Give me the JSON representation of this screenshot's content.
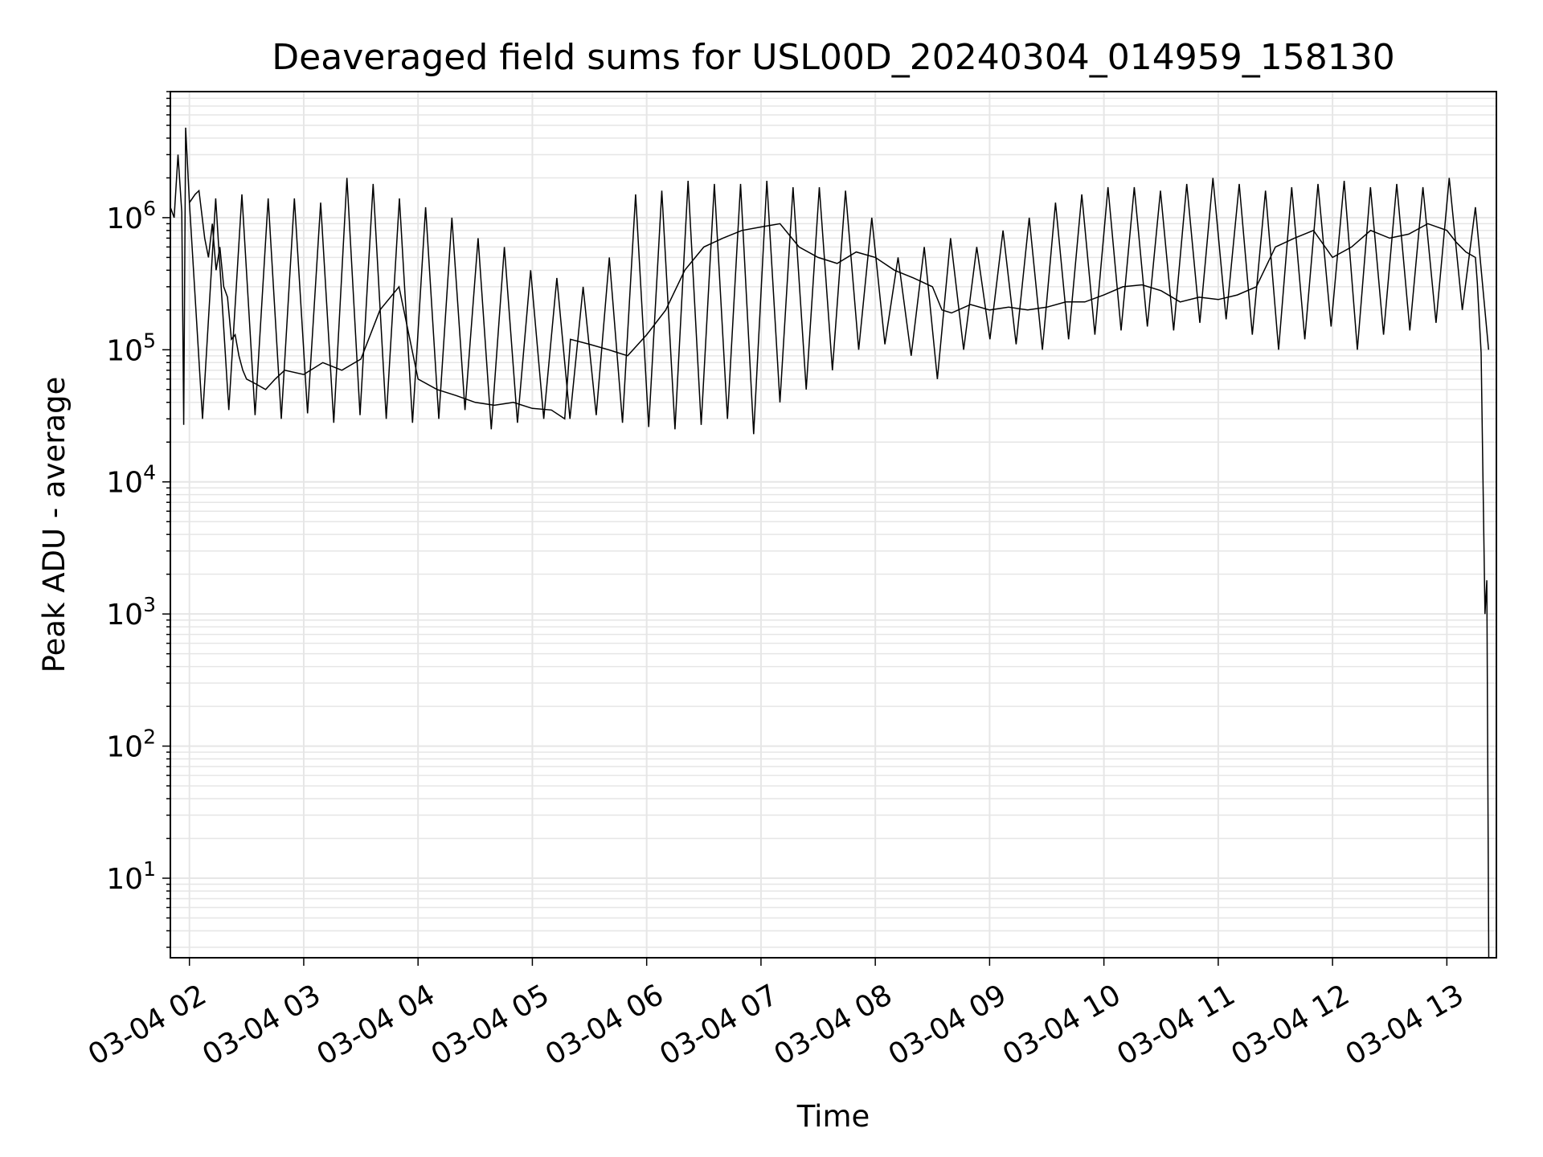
{
  "chart_data": {
    "type": "line",
    "title": "Deaveraged field sums for USL00D_20240304_014959_158130",
    "xlabel": "Time",
    "ylabel": "Peak ADU - average",
    "yscale": "log",
    "xlim": [
      "2024-03-04 01:50",
      "2024-03-04 13:26"
    ],
    "ylim": [
      2.5,
      9000000
    ],
    "grid": "major and minor",
    "line_color": "#000000",
    "grid_color": "#e6e6e6",
    "x_tick_labels": [
      "03-04 02",
      "03-04 03",
      "03-04 04",
      "03-04 05",
      "03-04 06",
      "03-04 07",
      "03-04 08",
      "03-04 09",
      "03-04 10",
      "03-04 11",
      "03-04 12",
      "03-04 13"
    ],
    "y_tick_labels": [
      {
        "base": "10",
        "exp": "1"
      },
      {
        "base": "10",
        "exp": "2"
      },
      {
        "base": "10",
        "exp": "3"
      },
      {
        "base": "10",
        "exp": "4"
      },
      {
        "base": "10",
        "exp": "5"
      },
      {
        "base": "10",
        "exp": "6"
      }
    ],
    "series": [
      {
        "x": [
          "2024-03-04 01:50",
          "2024-03-04 01:52",
          "2024-03-04 01:54",
          "2024-03-04 01:56",
          "2024-03-04 01:57",
          "2024-03-04 01:58",
          "2024-03-04 02:00",
          "2024-03-04 02:03",
          "2024-03-04 02:05",
          "2024-03-04 02:08",
          "2024-03-04 02:10",
          "2024-03-04 02:12",
          "2024-03-04 02:14",
          "2024-03-04 02:16",
          "2024-03-04 02:18",
          "2024-03-04 02:20",
          "2024-03-04 02:22",
          "2024-03-04 02:24",
          "2024-03-04 02:26",
          "2024-03-04 02:28",
          "2024-03-04 02:30",
          "2024-03-04 02:35",
          "2024-03-04 02:40",
          "2024-03-04 02:45",
          "2024-03-04 02:50",
          "2024-03-04 03:00",
          "2024-03-04 03:10",
          "2024-03-04 03:20",
          "2024-03-04 03:30",
          "2024-03-04 03:40",
          "2024-03-04 03:50",
          "2024-03-04 04:00",
          "2024-03-04 04:10",
          "2024-03-04 04:20",
          "2024-03-04 04:30",
          "2024-03-04 04:40",
          "2024-03-04 04:50",
          "2024-03-04 05:00",
          "2024-03-04 05:10",
          "2024-03-04 05:17",
          "2024-03-04 05:20",
          "2024-03-04 05:30",
          "2024-03-04 05:40",
          "2024-03-04 05:50",
          "2024-03-04 06:00",
          "2024-03-04 06:10",
          "2024-03-04 06:20",
          "2024-03-04 06:30",
          "2024-03-04 06:40",
          "2024-03-04 06:50",
          "2024-03-04 07:00",
          "2024-03-04 07:10",
          "2024-03-04 07:20",
          "2024-03-04 07:30",
          "2024-03-04 07:40",
          "2024-03-04 07:50",
          "2024-03-04 08:00",
          "2024-03-04 08:10",
          "2024-03-04 08:20",
          "2024-03-04 08:30",
          "2024-03-04 08:35",
          "2024-03-04 08:40",
          "2024-03-04 08:50",
          "2024-03-04 09:00",
          "2024-03-04 09:10",
          "2024-03-04 09:20",
          "2024-03-04 09:30",
          "2024-03-04 09:40",
          "2024-03-04 09:50",
          "2024-03-04 10:00",
          "2024-03-04 10:10",
          "2024-03-04 10:20",
          "2024-03-04 10:30",
          "2024-03-04 10:40",
          "2024-03-04 10:50",
          "2024-03-04 11:00",
          "2024-03-04 11:10",
          "2024-03-04 11:20",
          "2024-03-04 11:30",
          "2024-03-04 11:40",
          "2024-03-04 11:50",
          "2024-03-04 12:00",
          "2024-03-04 12:10",
          "2024-03-04 12:20",
          "2024-03-04 12:30",
          "2024-03-04 12:40",
          "2024-03-04 12:50",
          "2024-03-04 13:00",
          "2024-03-04 13:05",
          "2024-03-04 13:10",
          "2024-03-04 13:15",
          "2024-03-04 13:16",
          "2024-03-04 13:18",
          "2024-03-04 13:20",
          "2024-03-04 13:21",
          "2024-03-04 13:22"
        ],
        "y": [
          1200000,
          1000000,
          3000000,
          1100000,
          27000,
          4800000,
          1300000,
          1500000,
          1600000,
          700000,
          500000,
          900000,
          400000,
          600000,
          300000,
          250000,
          120000,
          130000,
          90000,
          70000,
          60000,
          55000,
          50000,
          60000,
          70000,
          65000,
          80000,
          70000,
          85000,
          200000,
          300000,
          60000,
          50000,
          45000,
          40000,
          38000,
          40000,
          36000,
          35000,
          30000,
          120000,
          110000,
          100000,
          90000,
          130000,
          200000,
          400000,
          600000,
          700000,
          800000,
          850000,
          900000,
          600000,
          500000,
          450000,
          550000,
          500000,
          400000,
          350000,
          300000,
          200000,
          190000,
          220000,
          200000,
          210000,
          200000,
          210000,
          230000,
          230000,
          260000,
          300000,
          310000,
          280000,
          230000,
          250000,
          240000,
          260000,
          300000,
          600000,
          700000,
          800000,
          500000,
          600000,
          800000,
          700000,
          750000,
          900000,
          800000,
          650000,
          550000,
          500000,
          320000,
          95000,
          1000,
          1800,
          2.5
        ],
        "spikes_high": [
          1300000,
          1400000,
          1500000,
          1400000,
          1400000,
          1300000,
          2000000,
          1800000,
          1400000,
          1200000,
          1000000,
          700000,
          600000,
          400000,
          350000,
          300000,
          500000,
          1500000,
          1600000,
          1900000,
          1800000,
          1800000,
          1900000,
          1700000,
          1700000,
          1600000,
          1000000,
          500000,
          600000,
          700000,
          600000,
          800000,
          1000000,
          1300000,
          1500000,
          1700000,
          1700000,
          1600000,
          1800000,
          2000000,
          1800000,
          1600000,
          1700000,
          1800000,
          1900000,
          1700000,
          1800000,
          1700000,
          2000000,
          1200000
        ],
        "spikes_low": [
          30000,
          35000,
          32000,
          30000,
          33000,
          28000,
          32000,
          30000,
          28000,
          30000,
          35000,
          25000,
          28000,
          30000,
          30000,
          32000,
          28000,
          26000,
          25000,
          27000,
          30000,
          23000,
          40000,
          50000,
          70000,
          100000,
          110000,
          90000,
          60000,
          100000,
          120000,
          110000,
          100000,
          120000,
          130000,
          140000,
          150000,
          140000,
          160000,
          170000,
          130000,
          100000,
          120000,
          150000,
          100000,
          130000,
          140000,
          160000,
          200000,
          100000
        ]
      }
    ]
  }
}
